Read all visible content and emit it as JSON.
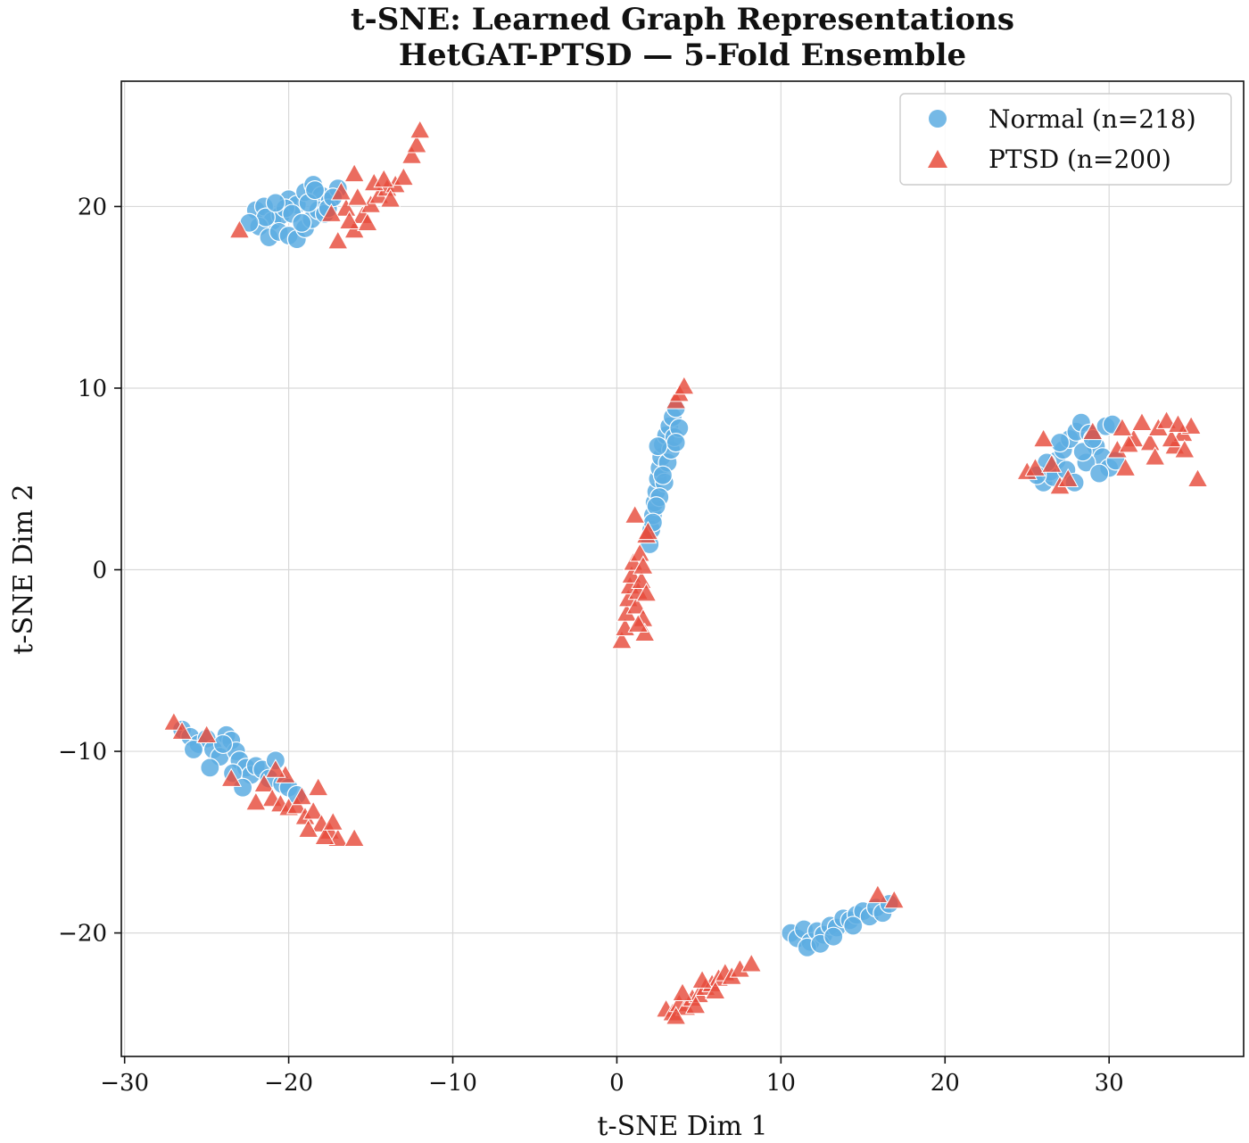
{
  "chart_data": {
    "type": "scatter",
    "title_lines": [
      "t-SNE: Learned Graph Representations",
      "HetGAT-PTSD — 5-Fold Ensemble"
    ],
    "xlabel": "t-SNE Dim 1",
    "ylabel": "t-SNE Dim 2",
    "xlim": [
      -30.2,
      38.2
    ],
    "ylim": [
      -26.8,
      26.9
    ],
    "xticks": [
      -30,
      -20,
      -10,
      0,
      10,
      20,
      30
    ],
    "xtick_labels": [
      "−30",
      "−20",
      "−10",
      "0",
      "10",
      "20",
      "30"
    ],
    "yticks": [
      -20,
      -10,
      0,
      10,
      20
    ],
    "ytick_labels": [
      "−20",
      "−10",
      "0",
      "10",
      "20"
    ],
    "grid": true,
    "legend_position": "top-right",
    "series": [
      {
        "name": "Normal (n=218)",
        "marker": "circle",
        "color": "#5DADE2",
        "points": [
          [
            -22.0,
            19.8
          ],
          [
            -21.5,
            20.0
          ],
          [
            -21.0,
            19.2
          ],
          [
            -20.5,
            19.5
          ],
          [
            -20.0,
            20.4
          ],
          [
            -19.5,
            20.1
          ],
          [
            -19.0,
            20.8
          ],
          [
            -18.5,
            21.2
          ],
          [
            -18.0,
            20.6
          ],
          [
            -17.5,
            20.3
          ],
          [
            -17.0,
            21.0
          ],
          [
            -21.8,
            18.9
          ],
          [
            -21.2,
            18.3
          ],
          [
            -20.6,
            18.6
          ],
          [
            -20.0,
            18.4
          ],
          [
            -19.5,
            18.2
          ],
          [
            -19.0,
            18.8
          ],
          [
            -18.6,
            19.3
          ],
          [
            -18.2,
            19.8
          ],
          [
            -17.8,
            19.6
          ],
          [
            -20.2,
            19.9
          ],
          [
            -19.8,
            19.6
          ],
          [
            -19.2,
            19.1
          ],
          [
            -18.8,
            20.2
          ],
          [
            -17.6,
            19.9
          ],
          [
            -21.4,
            19.4
          ],
          [
            -20.8,
            20.2
          ],
          [
            -22.4,
            19.1
          ],
          [
            -17.3,
            20.5
          ],
          [
            -18.4,
            20.9
          ],
          [
            -26.5,
            -8.8
          ],
          [
            -26.0,
            -9.2
          ],
          [
            -25.5,
            -9.6
          ],
          [
            -25.0,
            -9.3
          ],
          [
            -24.6,
            -9.9
          ],
          [
            -24.2,
            -10.3
          ],
          [
            -23.8,
            -9.1
          ],
          [
            -23.5,
            -9.4
          ],
          [
            -23.2,
            -10.0
          ],
          [
            -23.0,
            -10.5
          ],
          [
            -22.6,
            -10.9
          ],
          [
            -22.3,
            -11.3
          ],
          [
            -22.0,
            -10.8
          ],
          [
            -21.6,
            -11.0
          ],
          [
            -21.2,
            -11.5
          ],
          [
            -20.8,
            -10.5
          ],
          [
            -20.4,
            -11.8
          ],
          [
            -20.0,
            -12.0
          ],
          [
            -19.5,
            -12.4
          ],
          [
            -24.8,
            -10.9
          ],
          [
            -23.4,
            -11.2
          ],
          [
            -22.8,
            -12.0
          ],
          [
            -25.8,
            -9.9
          ],
          [
            -24.0,
            -9.6
          ],
          [
            2.0,
            1.4
          ],
          [
            2.1,
            2.2
          ],
          [
            2.2,
            3.0
          ],
          [
            2.3,
            3.7
          ],
          [
            2.4,
            4.3
          ],
          [
            2.5,
            5.0
          ],
          [
            2.6,
            5.6
          ],
          [
            2.7,
            6.2
          ],
          [
            2.8,
            6.9
          ],
          [
            3.0,
            7.4
          ],
          [
            3.2,
            7.9
          ],
          [
            3.4,
            8.4
          ],
          [
            3.6,
            8.9
          ],
          [
            2.9,
            4.8
          ],
          [
            2.6,
            4.0
          ],
          [
            3.1,
            5.9
          ],
          [
            3.3,
            6.6
          ],
          [
            3.5,
            7.3
          ],
          [
            2.4,
            3.5
          ],
          [
            2.8,
            5.2
          ],
          [
            3.8,
            7.8
          ],
          [
            2.2,
            2.6
          ],
          [
            3.6,
            7.0
          ],
          [
            2.5,
            6.8
          ],
          [
            26.0,
            4.8
          ],
          [
            26.4,
            5.4
          ],
          [
            26.8,
            6.0
          ],
          [
            27.2,
            6.6
          ],
          [
            27.6,
            7.2
          ],
          [
            28.0,
            7.6
          ],
          [
            28.3,
            8.1
          ],
          [
            28.8,
            7.5
          ],
          [
            29.2,
            6.8
          ],
          [
            29.6,
            6.2
          ],
          [
            30.0,
            5.6
          ],
          [
            30.4,
            6.0
          ],
          [
            29.8,
            7.9
          ],
          [
            26.6,
            5.1
          ],
          [
            27.4,
            5.5
          ],
          [
            27.9,
            4.8
          ],
          [
            28.6,
            5.9
          ],
          [
            29.4,
            5.3
          ],
          [
            27.0,
            7.0
          ],
          [
            28.4,
            6.5
          ],
          [
            26.2,
            5.9
          ],
          [
            25.6,
            5.2
          ],
          [
            30.2,
            8.0
          ],
          [
            29.0,
            7.2
          ],
          [
            10.6,
            -20.0
          ],
          [
            11.0,
            -20.3
          ],
          [
            11.4,
            -19.8
          ],
          [
            11.8,
            -20.5
          ],
          [
            12.2,
            -19.9
          ],
          [
            12.6,
            -20.1
          ],
          [
            13.0,
            -19.6
          ],
          [
            13.4,
            -19.7
          ],
          [
            13.8,
            -19.2
          ],
          [
            14.2,
            -19.3
          ],
          [
            14.6,
            -19.0
          ],
          [
            15.0,
            -18.8
          ],
          [
            15.4,
            -19.1
          ],
          [
            15.8,
            -18.6
          ],
          [
            16.2,
            -18.9
          ],
          [
            16.6,
            -18.4
          ],
          [
            11.6,
            -20.8
          ],
          [
            12.4,
            -20.6
          ],
          [
            13.2,
            -20.2
          ],
          [
            14.4,
            -19.6
          ]
        ]
      },
      {
        "name": "PTSD (n=200)",
        "marker": "triangle",
        "color": "#E74C3C",
        "points": [
          [
            -23.0,
            18.7
          ],
          [
            -17.0,
            18.1
          ],
          [
            -16.0,
            18.7
          ],
          [
            -15.5,
            19.5
          ],
          [
            -15.0,
            20.1
          ],
          [
            -14.5,
            20.6
          ],
          [
            -14.0,
            21.0
          ],
          [
            -13.5,
            21.2
          ],
          [
            -13.0,
            21.6
          ],
          [
            -12.5,
            22.8
          ],
          [
            -12.2,
            23.4
          ],
          [
            -12.0,
            24.2
          ],
          [
            -16.5,
            19.9
          ],
          [
            -16.8,
            20.8
          ],
          [
            -15.8,
            20.5
          ],
          [
            -15.2,
            19.1
          ],
          [
            -14.8,
            21.3
          ],
          [
            -13.8,
            20.4
          ],
          [
            -16.0,
            21.8
          ],
          [
            -17.4,
            19.6
          ],
          [
            -16.3,
            19.2
          ],
          [
            -14.2,
            21.5
          ],
          [
            -27.0,
            -8.4
          ],
          [
            -26.5,
            -8.9
          ],
          [
            -25.0,
            -9.1
          ],
          [
            -23.5,
            -11.5
          ],
          [
            -21.5,
            -11.8
          ],
          [
            -21.0,
            -12.6
          ],
          [
            -20.5,
            -12.9
          ],
          [
            -20.0,
            -13.1
          ],
          [
            -19.5,
            -13.0
          ],
          [
            -19.0,
            -13.6
          ],
          [
            -18.5,
            -13.3
          ],
          [
            -18.0,
            -14.0
          ],
          [
            -17.5,
            -14.4
          ],
          [
            -17.0,
            -14.8
          ],
          [
            -16.0,
            -14.8
          ],
          [
            -18.2,
            -12.0
          ],
          [
            -20.2,
            -11.3
          ],
          [
            -22.0,
            -12.8
          ],
          [
            -19.2,
            -12.5
          ],
          [
            -17.8,
            -14.7
          ],
          [
            -18.8,
            -14.3
          ],
          [
            -20.8,
            -11.0
          ],
          [
            -17.3,
            -13.9
          ],
          [
            0.3,
            -3.9
          ],
          [
            0.5,
            -3.2
          ],
          [
            0.6,
            -2.4
          ],
          [
            0.7,
            -1.6
          ],
          [
            0.8,
            -0.9
          ],
          [
            0.9,
            -0.3
          ],
          [
            1.0,
            0.4
          ],
          [
            1.2,
            -2.0
          ],
          [
            1.3,
            -1.2
          ],
          [
            1.4,
            0.9
          ],
          [
            1.5,
            -0.6
          ],
          [
            1.6,
            -2.7
          ],
          [
            1.7,
            -3.5
          ],
          [
            1.8,
            1.9
          ],
          [
            1.9,
            2.1
          ],
          [
            1.1,
            3.0
          ],
          [
            1.6,
            0.2
          ],
          [
            1.3,
            -3.0
          ],
          [
            1.8,
            -1.3
          ],
          [
            3.6,
            9.3
          ],
          [
            3.8,
            9.7
          ],
          [
            4.1,
            10.1
          ],
          [
            25.0,
            5.4
          ],
          [
            25.5,
            5.6
          ],
          [
            26.0,
            7.2
          ],
          [
            26.5,
            5.8
          ],
          [
            27.0,
            4.6
          ],
          [
            27.5,
            5.0
          ],
          [
            29.0,
            7.6
          ],
          [
            30.5,
            6.6
          ],
          [
            31.0,
            5.6
          ],
          [
            31.5,
            7.2
          ],
          [
            32.0,
            8.1
          ],
          [
            32.5,
            7.0
          ],
          [
            33.0,
            7.8
          ],
          [
            33.5,
            8.2
          ],
          [
            34.0,
            6.8
          ],
          [
            34.5,
            7.5
          ],
          [
            35.0,
            7.9
          ],
          [
            35.4,
            5.0
          ],
          [
            31.2,
            6.9
          ],
          [
            32.8,
            6.2
          ],
          [
            33.8,
            7.2
          ],
          [
            34.6,
            6.6
          ],
          [
            30.8,
            7.8
          ],
          [
            34.2,
            8.0
          ],
          [
            3.0,
            -24.2
          ],
          [
            3.4,
            -24.4
          ],
          [
            3.8,
            -23.9
          ],
          [
            4.2,
            -24.1
          ],
          [
            4.6,
            -23.6
          ],
          [
            5.0,
            -23.4
          ],
          [
            5.4,
            -23.0
          ],
          [
            5.8,
            -22.8
          ],
          [
            6.2,
            -22.5
          ],
          [
            6.6,
            -22.2
          ],
          [
            7.0,
            -22.4
          ],
          [
            7.5,
            -22.0
          ],
          [
            8.2,
            -21.7
          ],
          [
            4.0,
            -23.3
          ],
          [
            5.2,
            -22.6
          ],
          [
            6.0,
            -23.2
          ],
          [
            3.6,
            -24.6
          ],
          [
            4.8,
            -24.0
          ],
          [
            15.9,
            -17.9
          ],
          [
            16.9,
            -18.2
          ]
        ]
      }
    ]
  }
}
